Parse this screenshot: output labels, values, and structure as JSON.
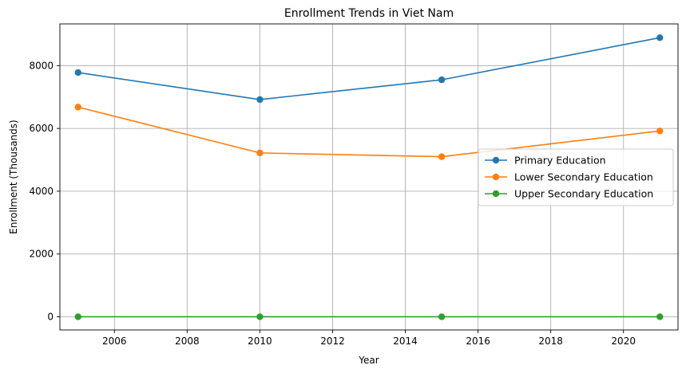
{
  "chart_data": {
    "type": "line",
    "title": "Enrollment Trends in Viet Nam",
    "xlabel": "Year",
    "ylabel": "Enrollment (Thousands)",
    "xlim": [
      2004.5,
      2021.5
    ],
    "ylim": [
      -420,
      9330
    ],
    "xticks": [
      2006,
      2008,
      2010,
      2012,
      2014,
      2016,
      2018,
      2020
    ],
    "yticks": [
      0,
      2000,
      4000,
      6000,
      8000
    ],
    "grid": true,
    "legend_position": "center-right",
    "x": [
      2005,
      2010,
      2015,
      2021
    ],
    "series": [
      {
        "name": "Primary Education",
        "color": "#1f77b4",
        "values": [
          7780,
          6920,
          7550,
          8890
        ]
      },
      {
        "name": "Lower Secondary Education",
        "color": "#ff7f0e",
        "values": [
          6680,
          5220,
          5100,
          5920
        ]
      },
      {
        "name": "Upper Secondary Education",
        "color": "#2ca02c",
        "values": [
          0,
          0,
          0,
          0
        ]
      }
    ]
  }
}
